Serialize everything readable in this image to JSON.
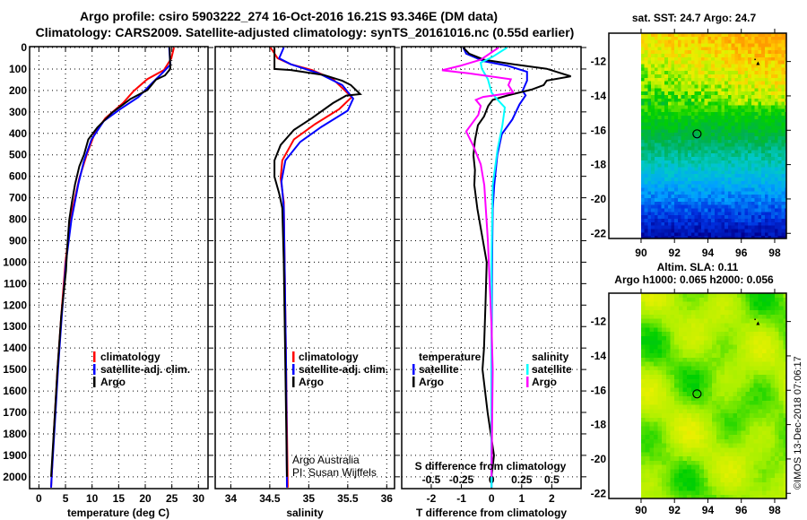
{
  "title": {
    "line1": "Argo profile: csiro 5903222_274 16-Oct-2016 16.21S 93.346E (DM data)",
    "line2": "Climatology: CARS2009. Satellite-adjusted climatology: synTS_20161016.nc (0.55d earlier)"
  },
  "colors": {
    "climatology": "#ff0000",
    "satellite": "#0000ff",
    "argo": "#000000",
    "s_satellite": "#00ffff",
    "s_argo": "#ff00ff"
  },
  "depth_axis": {
    "ticks": [
      0,
      100,
      200,
      300,
      400,
      500,
      600,
      700,
      800,
      900,
      1000,
      1100,
      1200,
      1300,
      1400,
      1500,
      1600,
      1700,
      1800,
      1900,
      2000
    ],
    "ylim": [
      0,
      2055
    ],
    "inverted": true
  },
  "legend_profiles": {
    "climatology": "climatology",
    "satellite": "satellite-adj. clim.",
    "argo": "Argo"
  },
  "legend_diff": {
    "temperature": "temperature",
    "t_satellite": "satellite",
    "t_argo": "Argo",
    "salinity": "salinity",
    "s_satellite": "satellite",
    "s_argo": "Argo"
  },
  "notes": {
    "line1": "Argo Australia",
    "line2": "PI: Susan Wijffels"
  },
  "credit": "©IMOS 13-Dec-2018 07:06:17",
  "chart_data": [
    {
      "type": "line",
      "xlabel": "temperature (deg C)",
      "xticks": [
        0,
        5,
        10,
        15,
        20,
        25,
        30
      ],
      "xlim": [
        -1.75,
        31.8
      ],
      "grid": true,
      "series": [
        {
          "name": "climatology",
          "color": "#ff0000",
          "points": [
            [
              0,
              25.4
            ],
            [
              50,
              24.9
            ],
            [
              105,
              23.5
            ],
            [
              147,
              20.4
            ],
            [
              203,
              17.8
            ],
            [
              259,
              15.8
            ],
            [
              329,
              12.5
            ],
            [
              399,
              10.5
            ],
            [
              498,
              9.0
            ],
            [
              609,
              7.6
            ],
            [
              776,
              6.1
            ],
            [
              1000,
              5.0
            ],
            [
              1250,
              4.2
            ],
            [
              1500,
              3.5
            ],
            [
              1750,
              2.9
            ],
            [
              2000,
              2.4
            ],
            [
              2050,
              2.3
            ]
          ]
        },
        {
          "name": "satellite-adj. clim.",
          "color": "#0000ff",
          "points": [
            [
              0,
              24.5
            ],
            [
              80,
              24.7
            ],
            [
              119,
              23.2
            ],
            [
              175,
              20.9
            ],
            [
              231,
              18.7
            ],
            [
              287,
              15.3
            ],
            [
              343,
              12.2
            ],
            [
              428,
              9.9
            ],
            [
              526,
              8.5
            ],
            [
              637,
              7.4
            ],
            [
              804,
              6.1
            ],
            [
              1000,
              5.1
            ],
            [
              1250,
              4.3
            ],
            [
              1500,
              3.6
            ],
            [
              1750,
              3.0
            ],
            [
              2000,
              2.4
            ],
            [
              2050,
              2.3
            ]
          ]
        },
        {
          "name": "Argo",
          "color": "#000000",
          "points": [
            [
              0,
              24.6
            ],
            [
              100,
              24.7
            ],
            [
              130,
              23.7
            ],
            [
              150,
              22.0
            ],
            [
              198,
              20.4
            ],
            [
              240,
              17.2
            ],
            [
              268,
              15.7
            ],
            [
              303,
              13.8
            ],
            [
              372,
              11.0
            ],
            [
              428,
              9.3
            ],
            [
              498,
              8.5
            ],
            [
              553,
              7.6
            ],
            [
              637,
              6.8
            ],
            [
              720,
              6.2
            ],
            [
              804,
              5.7
            ],
            [
              943,
              5.3
            ],
            [
              1040,
              5.1
            ],
            [
              1250,
              4.2
            ],
            [
              1500,
              3.5
            ],
            [
              1750,
              2.9
            ],
            [
              2000,
              2.3
            ]
          ]
        }
      ]
    },
    {
      "type": "line",
      "xlabel": "salinity",
      "xticks": [
        34,
        34.5,
        35,
        35.5,
        36
      ],
      "xlim": [
        33.8,
        36.1
      ],
      "grid": true,
      "series": [
        {
          "name": "climatology",
          "color": "#ff0000",
          "points": [
            [
              0,
              34.51
            ],
            [
              50,
              34.6
            ],
            [
              78,
              34.77
            ],
            [
              105,
              35.04
            ],
            [
              147,
              35.31
            ],
            [
              189,
              35.43
            ],
            [
              231,
              35.55
            ],
            [
              287,
              35.39
            ],
            [
              357,
              35.08
            ],
            [
              428,
              34.81
            ],
            [
              526,
              34.66
            ],
            [
              609,
              34.64
            ],
            [
              720,
              34.68
            ],
            [
              1000,
              34.69
            ],
            [
              1500,
              34.71
            ],
            [
              2050,
              34.73
            ]
          ]
        },
        {
          "name": "satellite-adj. clim.",
          "color": "#0000ff",
          "points": [
            [
              0,
              34.68
            ],
            [
              50,
              34.62
            ],
            [
              78,
              34.77
            ],
            [
              119,
              35.12
            ],
            [
              175,
              35.43
            ],
            [
              238,
              35.57
            ],
            [
              294,
              35.5
            ],
            [
              370,
              35.16
            ],
            [
              440,
              34.89
            ],
            [
              526,
              34.7
            ],
            [
              623,
              34.65
            ],
            [
              748,
              34.68
            ],
            [
              1000,
              34.69
            ],
            [
              1500,
              34.71
            ],
            [
              2050,
              34.72
            ]
          ]
        },
        {
          "name": "Argo",
          "color": "#000000",
          "points": [
            [
              0,
              34.56
            ],
            [
              100,
              34.56
            ],
            [
              105,
              34.77
            ],
            [
              128,
              35.19
            ],
            [
              155,
              35.43
            ],
            [
              175,
              35.54
            ],
            [
              217,
              35.66
            ],
            [
              224,
              35.48
            ],
            [
              259,
              35.31
            ],
            [
              329,
              35.04
            ],
            [
              384,
              34.81
            ],
            [
              454,
              34.64
            ],
            [
              526,
              34.56
            ],
            [
              602,
              34.56
            ],
            [
              679,
              34.62
            ],
            [
              748,
              34.66
            ],
            [
              1000,
              34.68
            ],
            [
              1500,
              34.7
            ],
            [
              2000,
              34.72
            ]
          ]
        }
      ]
    },
    {
      "type": "line",
      "xlabel": "T difference from climatology",
      "xticks": [
        -2,
        -1,
        0,
        1,
        2
      ],
      "xlim": [
        -2.98,
        2.97
      ],
      "x2label": "S difference from climatology",
      "x2ticks": [
        -0.5,
        -0.25,
        0,
        0.25,
        0.5
      ],
      "x2lim": [
        -0.745,
        0.7425
      ],
      "grid": true,
      "series": [
        {
          "name": "temperature satellite",
          "axis": "T",
          "color": "#0000ff",
          "points": [
            [
              0,
              -0.94
            ],
            [
              29,
              -0.84
            ],
            [
              64,
              -0.25
            ],
            [
              85,
              0.54
            ],
            [
              113,
              1.18
            ],
            [
              154,
              1.18
            ],
            [
              202,
              1.03
            ],
            [
              223,
              1.13
            ],
            [
              265,
              0.93
            ],
            [
              335,
              0.69
            ],
            [
              404,
              0.34
            ],
            [
              502,
              0.19
            ],
            [
              641,
              0.09
            ],
            [
              752,
              0.04
            ],
            [
              1000,
              0.02
            ],
            [
              1500,
              0.0
            ],
            [
              2050,
              0.0
            ]
          ]
        },
        {
          "name": "temperature Argo",
          "axis": "T",
          "color": "#000000",
          "points": [
            [
              0,
              -0.94
            ],
            [
              29,
              -0.74
            ],
            [
              57,
              -0.25
            ],
            [
              78,
              0.74
            ],
            [
              99,
              1.83
            ],
            [
              134,
              2.63
            ],
            [
              154,
              1.83
            ],
            [
              175,
              1.73
            ],
            [
              196,
              1.33
            ],
            [
              223,
              0.54
            ],
            [
              244,
              0.04
            ],
            [
              272,
              -0.11
            ],
            [
              321,
              -0.25
            ],
            [
              362,
              -0.45
            ],
            [
              432,
              -0.55
            ],
            [
              502,
              -0.6
            ],
            [
              571,
              -0.55
            ],
            [
              641,
              -0.57
            ],
            [
              752,
              -0.47
            ],
            [
              1000,
              -0.16
            ],
            [
              1200,
              -0.2
            ],
            [
              1400,
              -0.25
            ],
            [
              1500,
              -0.3
            ],
            [
              1700,
              -0.13
            ],
            [
              1900,
              0.08
            ],
            [
              2000,
              0.0
            ]
          ]
        },
        {
          "name": "salinity satellite",
          "axis": "S",
          "color": "#00ffff",
          "points": [
            [
              0,
              0.13
            ],
            [
              43,
              0.01
            ],
            [
              71,
              -0.09
            ],
            [
              99,
              -0.08
            ],
            [
              148,
              -0.03
            ],
            [
              210,
              0.0
            ],
            [
              237,
              0.04
            ],
            [
              279,
              0.11
            ],
            [
              362,
              0.09
            ],
            [
              474,
              0.05
            ],
            [
              641,
              0.01
            ],
            [
              1000,
              0.0
            ],
            [
              2050,
              0.0
            ]
          ]
        },
        {
          "name": "salinity Argo",
          "axis": "S",
          "color": "#ff00ff",
          "points": [
            [
              0,
              0.06
            ],
            [
              57,
              -0.09
            ],
            [
              85,
              -0.26
            ],
            [
              106,
              -0.41
            ],
            [
              120,
              -0.19
            ],
            [
              148,
              0.16
            ],
            [
              175,
              0.14
            ],
            [
              210,
              0.18
            ],
            [
              230,
              -0.07
            ],
            [
              244,
              -0.13
            ],
            [
              272,
              -0.09
            ],
            [
              314,
              -0.11
            ],
            [
              391,
              -0.21
            ],
            [
              460,
              -0.15
            ],
            [
              544,
              -0.09
            ],
            [
              641,
              -0.06
            ],
            [
              900,
              -0.03
            ],
            [
              1300,
              0.0
            ],
            [
              1500,
              0.01
            ],
            [
              2000,
              0.0
            ]
          ]
        }
      ]
    },
    {
      "type": "heatmap",
      "title": "sat. SST: 24.7 Argo: 24.7",
      "xticks": [
        90,
        92,
        94,
        96,
        98
      ],
      "yticks": [
        -12,
        -14,
        -16,
        -18,
        -20,
        -22
      ],
      "xlim": [
        88.07,
        98.7
      ],
      "ylim": [
        -22.3,
        -10.35
      ],
      "data_lon_range": [
        90,
        98.7
      ],
      "profile_marker": {
        "lon": 93.35,
        "lat": -16.21
      },
      "other_marker": {
        "lon": 97.0,
        "lat": -12.1
      },
      "colormap": [
        "#000090",
        "#0030e0",
        "#00a0ff",
        "#00c8c8",
        "#00b050",
        "#00d000",
        "#a8f000",
        "#e8f000",
        "#ffc800",
        "#ff9c00"
      ]
    },
    {
      "type": "heatmap",
      "title": "Altim. SLA: 0.11",
      "subtitle": "Argo h1000: 0.065 h2000: 0.056",
      "xticks": [
        90,
        92,
        94,
        96,
        98
      ],
      "yticks": [
        -12,
        -14,
        -16,
        -18,
        -20,
        -22
      ],
      "xlim": [
        88.07,
        98.7
      ],
      "ylim": [
        -22.3,
        -10.35
      ],
      "data_lon_range": [
        90,
        98.7
      ],
      "profile_marker": {
        "lon": 93.35,
        "lat": -16.21
      },
      "other_marker": {
        "lon": 97.0,
        "lat": -12.1
      }
    }
  ]
}
